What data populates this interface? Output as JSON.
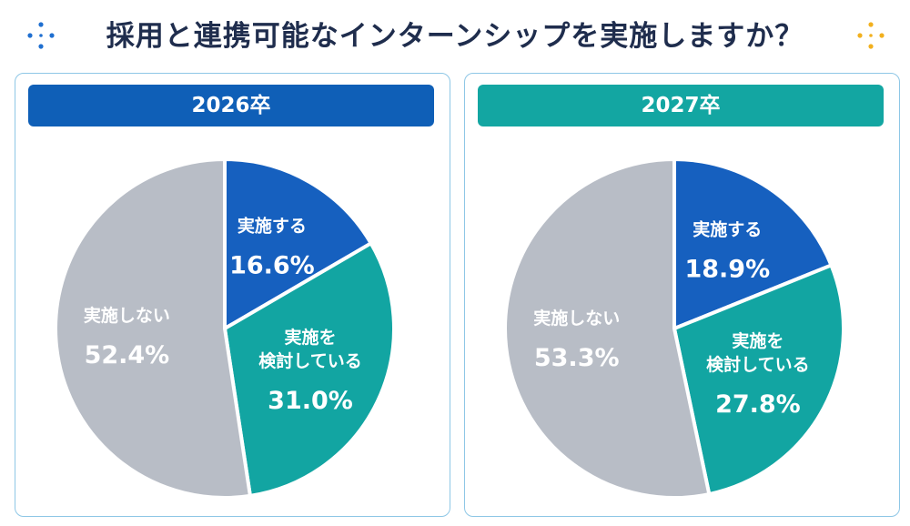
{
  "title": "採用と連携可能なインターンシップを実施しますか？",
  "colors": {
    "title": "#1f2d4d",
    "header_2026": "#0f5fb7",
    "header_2027": "#13a6a2",
    "implement": "#1660bf",
    "considering": "#12a5a2",
    "not_implement": "#b8bdc6",
    "deco_left": "#1f6fd0",
    "deco_right": "#f2b01e"
  },
  "chart_data": [
    {
      "type": "pie",
      "title": "2026卒",
      "slices": [
        {
          "name": "実施する",
          "name_lines": [
            "実施する"
          ],
          "value": 16.6,
          "label": "16.6%",
          "color_key": "implement"
        },
        {
          "name": "実施を検討している",
          "name_lines": [
            "実施を",
            "検討している"
          ],
          "value": 31.0,
          "label": "31.0%",
          "color_key": "considering"
        },
        {
          "name": "実施しない",
          "name_lines": [
            "実施しない"
          ],
          "value": 52.4,
          "label": "52.4%",
          "color_key": "not_implement"
        }
      ]
    },
    {
      "type": "pie",
      "title": "2027卒",
      "slices": [
        {
          "name": "実施する",
          "name_lines": [
            "実施する"
          ],
          "value": 18.9,
          "label": "18.9%",
          "color_key": "implement"
        },
        {
          "name": "実施を検討している",
          "name_lines": [
            "実施を",
            "検討している"
          ],
          "value": 27.8,
          "label": "27.8%",
          "color_key": "considering"
        },
        {
          "name": "実施しない",
          "name_lines": [
            "実施しない"
          ],
          "value": 53.3,
          "label": "53.3%",
          "color_key": "not_implement"
        }
      ]
    }
  ]
}
